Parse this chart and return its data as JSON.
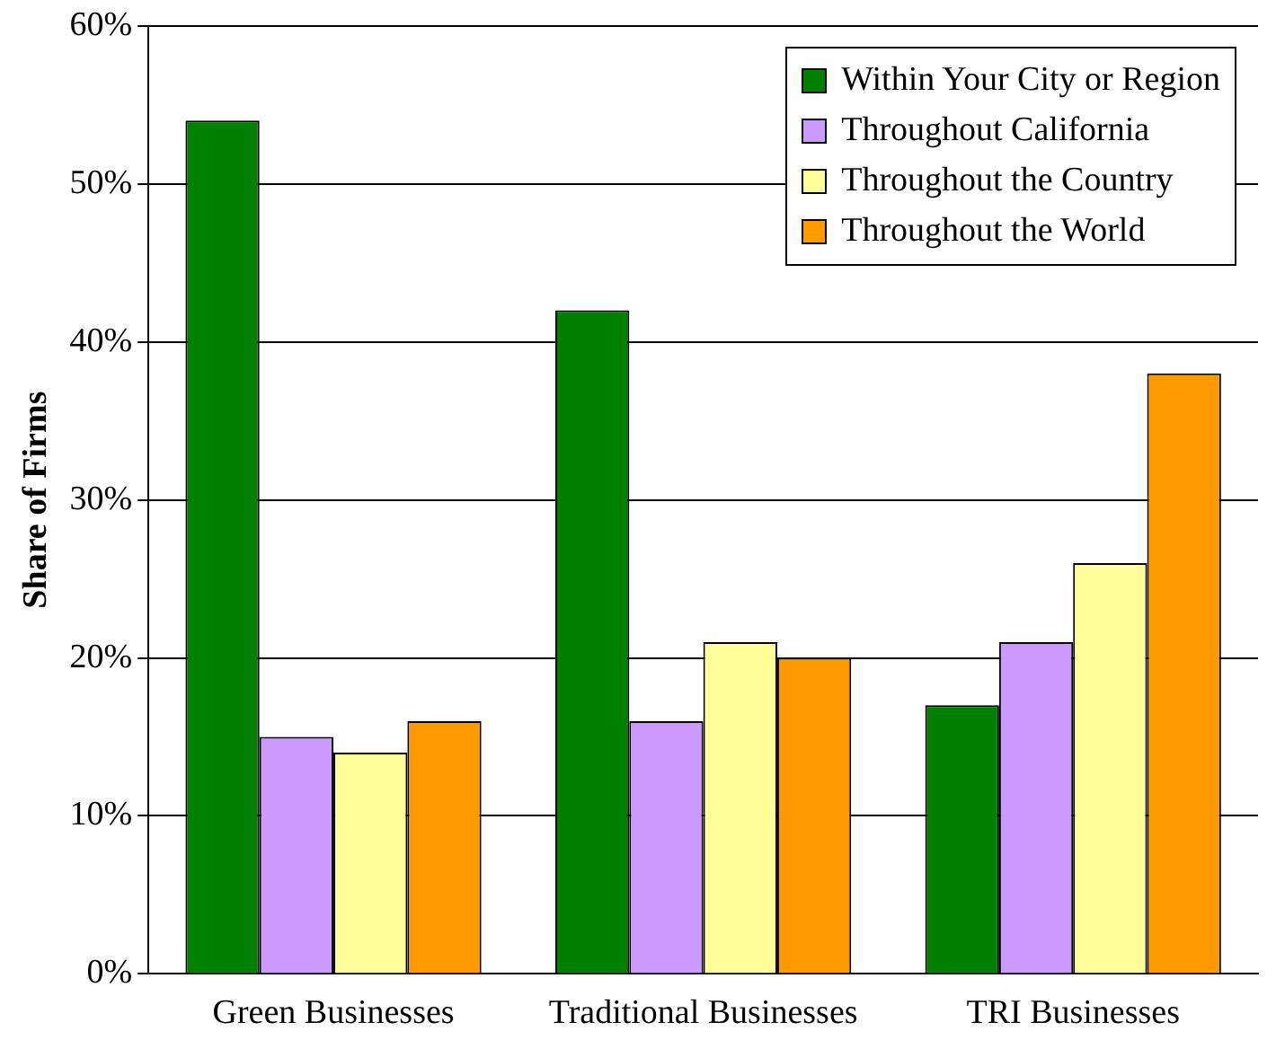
{
  "chart_data": {
    "type": "bar",
    "ylabel": "Share of Firms",
    "categories": [
      "Green Businesses",
      "Traditional Businesses",
      "TRI Businesses"
    ],
    "series": [
      {
        "name": "Within Your City or Region",
        "color": "#008000",
        "values": [
          54,
          42,
          17
        ]
      },
      {
        "name": "Throughout California",
        "color": "#cc99ff",
        "values": [
          15,
          16,
          21
        ]
      },
      {
        "name": "Throughout the Country",
        "color": "#ffff99",
        "values": [
          14,
          21,
          26
        ]
      },
      {
        "name": "Throughout the World",
        "color": "#ff9900",
        "values": [
          16,
          20,
          38
        ]
      }
    ],
    "ylim": [
      0,
      60
    ],
    "yticks": [
      {
        "value": 0,
        "label": "0%"
      },
      {
        "value": 10,
        "label": "10%"
      },
      {
        "value": 20,
        "label": "20%"
      },
      {
        "value": 30,
        "label": "30%"
      },
      {
        "value": 40,
        "label": "40%"
      },
      {
        "value": 50,
        "label": "50%"
      },
      {
        "value": 60,
        "label": "60%"
      }
    ],
    "grid": "y",
    "legend": "top right"
  }
}
